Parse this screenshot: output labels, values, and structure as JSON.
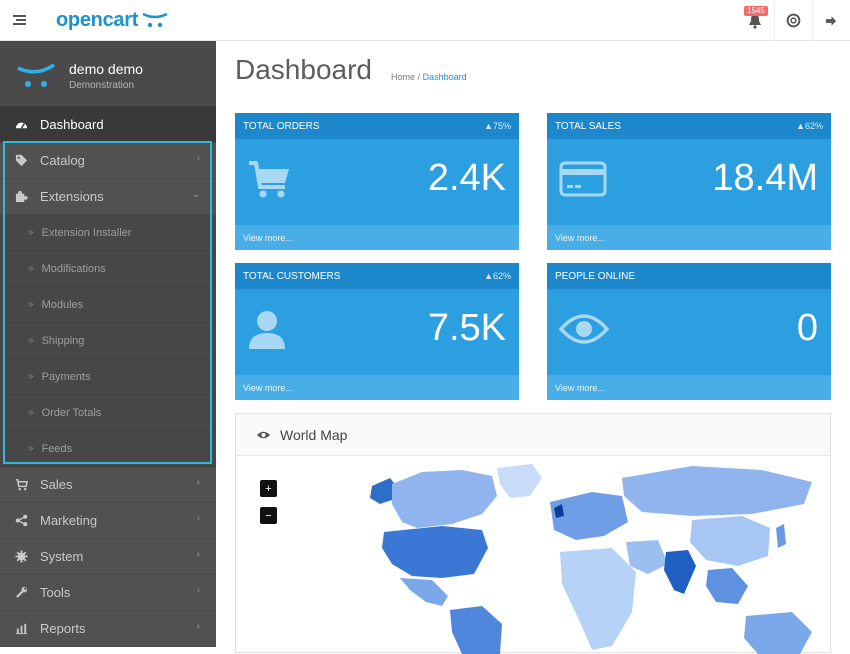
{
  "brand": {
    "name": "opencart",
    "color": "#1e91cf"
  },
  "header": {
    "alerts_count": "1545",
    "icons": [
      "menu-icon",
      "bell-icon",
      "lifering-icon",
      "logout-icon"
    ]
  },
  "profile": {
    "name": "demo demo",
    "role": "Demonstration"
  },
  "nav": {
    "dashboard": "Dashboard",
    "catalog": "Catalog",
    "extensions": "Extensions",
    "extensions_sub": [
      "Extension Installer",
      "Modifications",
      "Modules",
      "Shipping",
      "Payments",
      "Order Totals",
      "Feeds"
    ],
    "sales": "Sales",
    "marketing": "Marketing",
    "system": "System",
    "tools": "Tools",
    "reports": "Reports",
    "sub_prefix": "»",
    "chevron_right": "›",
    "chevron_down": "⌄"
  },
  "page": {
    "title": "Dashboard",
    "breadcrumb_home": "Home",
    "breadcrumb_sep": "/",
    "breadcrumb_current": "Dashboard"
  },
  "tiles": [
    {
      "title": "TOTAL ORDERS",
      "pct": "▲75%",
      "value": "2.4K",
      "footer": "View more...",
      "icon": "cart-icon"
    },
    {
      "title": "TOTAL SALES",
      "pct": "▲62%",
      "value": "18.4M",
      "footer": "View more...",
      "icon": "credit-card-icon"
    },
    {
      "title": "TOTAL CUSTOMERS",
      "pct": "▲62%",
      "value": "7.5K",
      "footer": "View more...",
      "icon": "user-icon"
    },
    {
      "title": "PEOPLE ONLINE",
      "pct": "",
      "value": "0",
      "footer": "View more...",
      "icon": "eye-icon"
    }
  ],
  "map": {
    "title": "World Map",
    "zoom_in": "+",
    "zoom_out": "−"
  },
  "colors": {
    "sidebar": "#515151",
    "tile": "#2c9fe0",
    "tile_head": "#1c88cb",
    "highlight": "#31b9d8"
  }
}
